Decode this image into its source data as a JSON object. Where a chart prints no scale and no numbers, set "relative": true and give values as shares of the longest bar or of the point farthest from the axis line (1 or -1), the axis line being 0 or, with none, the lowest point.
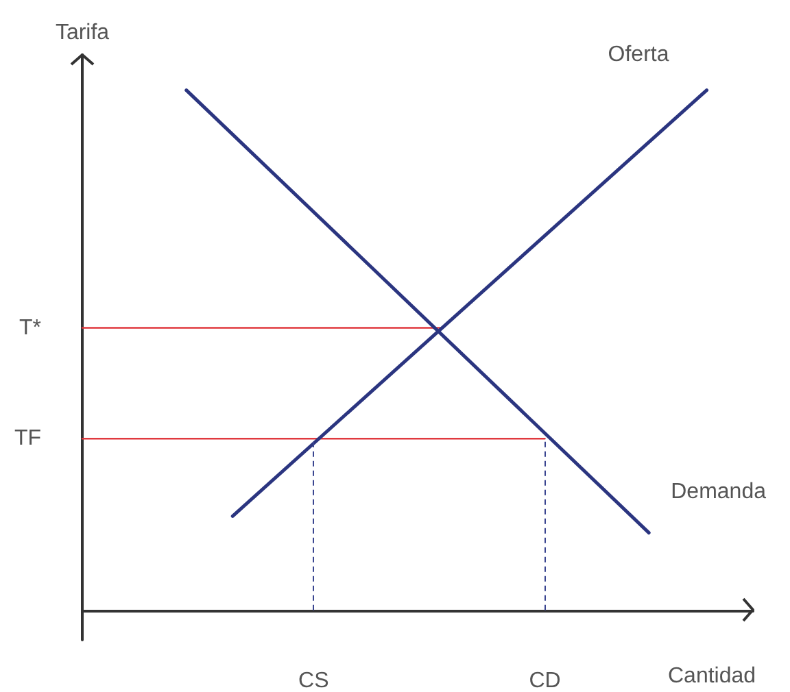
{
  "chart_data": {
    "type": "line",
    "xlabel": "Cantidad",
    "ylabel": "Tarifa",
    "relative": true,
    "categories": [
      null,
      null,
      null,
      null,
      null,
      null,
      null,
      null,
      null,
      null,
      null,
      null,
      null,
      null,
      null,
      null,
      null,
      null,
      null,
      null,
      "CS",
      null,
      null,
      null,
      null,
      null,
      null,
      null,
      null,
      null,
      null,
      null,
      null,
      null,
      null,
      null,
      null,
      null,
      null,
      null,
      "CD",
      null,
      null,
      null,
      null,
      null,
      null,
      null,
      null,
      null,
      null,
      null,
      null,
      null,
      null,
      null,
      null,
      null,
      null
    ],
    "series": [
      {
        "name": "Demanda",
        "color": "#2b3580",
        "values": [
          null,
          null,
          null,
          null,
          null,
          null,
          null,
          null,
          null,
          1,
          null,
          null,
          null,
          null,
          null,
          null,
          null,
          null,
          null,
          null,
          null,
          null,
          null,
          null,
          null,
          null,
          null,
          null,
          null,
          null,
          null,
          null,
          null,
          null,
          null,
          null,
          null,
          null,
          null,
          null,
          null,
          null,
          null,
          null,
          null,
          null,
          null,
          null,
          null,
          0.149,
          null,
          null,
          null,
          null,
          null,
          null,
          null,
          null,
          null
        ]
      },
      {
        "name": "Oferta",
        "color": "#2b3580",
        "values": [
          null,
          null,
          null,
          null,
          null,
          null,
          null,
          null,
          null,
          null,
          null,
          null,
          null,
          0.181,
          null,
          null,
          null,
          null,
          null,
          null,
          null,
          null,
          null,
          null,
          null,
          null,
          null,
          null,
          null,
          null,
          null,
          null,
          null,
          null,
          null,
          null,
          null,
          null,
          null,
          null,
          null,
          null,
          null,
          null,
          null,
          null,
          null,
          null,
          null,
          null,
          null,
          null,
          null,
          null,
          1,
          null,
          null,
          null,
          null
        ]
      },
      {
        "name": "T*",
        "color": "#e0393e",
        "values": [
          0.543,
          0.543,
          0.543,
          0.543,
          0.543,
          0.543,
          0.543,
          0.543,
          0.543,
          0.543,
          0.543,
          0.543,
          0.543,
          0.543,
          0.543,
          0.543,
          0.543,
          0.543,
          0.543,
          0.543,
          0.543,
          0.543,
          0.543,
          0.543,
          0.543,
          0.543,
          0.543,
          0.543,
          0.543,
          0.543,
          0.543,
          0.543,
          null,
          null,
          null,
          null,
          null,
          null,
          null,
          null,
          null,
          null,
          null,
          null,
          null,
          null,
          null,
          null,
          null,
          null,
          null,
          null,
          null,
          null,
          null,
          null,
          null,
          null,
          null
        ]
      },
      {
        "name": "TF",
        "color": "#e0393e",
        "values": [
          0.33,
          0.33,
          0.33,
          0.33,
          0.33,
          0.33,
          0.33,
          0.33,
          0.33,
          0.33,
          0.33,
          0.33,
          0.33,
          0.33,
          0.33,
          0.33,
          0.33,
          0.33,
          0.33,
          0.33,
          0.33,
          0.33,
          0.33,
          0.33,
          0.33,
          0.33,
          0.33,
          0.33,
          0.33,
          0.33,
          0.33,
          0.33,
          0.33,
          0.33,
          0.33,
          0.33,
          0.33,
          0.33,
          0.33,
          0.33,
          0.33,
          null,
          null,
          null,
          null,
          null,
          null,
          null,
          null,
          null,
          null,
          null,
          null,
          null,
          null,
          null,
          null,
          null,
          null
        ]
      }
    ],
    "ref_lines": [
      {
        "axis": "x",
        "value": "CS",
        "color": "#3a4590",
        "line_style": "dashed"
      },
      {
        "axis": "x",
        "value": "CD",
        "color": "#3a4590",
        "line_style": "dashed"
      }
    ],
    "marker": "none",
    "line_style": "solid",
    "grid": false,
    "legend": false
  }
}
